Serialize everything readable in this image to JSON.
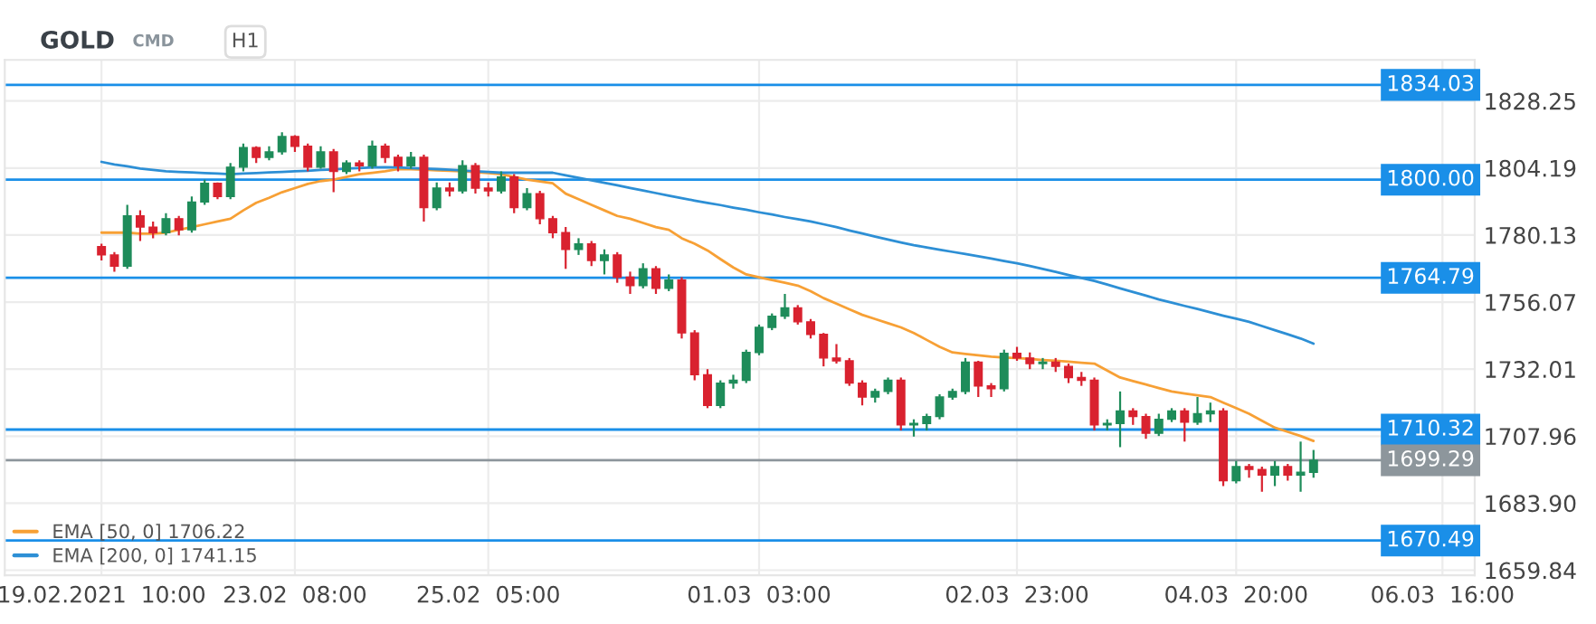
{
  "chart_data": {
    "type": "candlestick",
    "title": "GOLD",
    "subtitle": "CMD",
    "annotations": [
      "H1"
    ],
    "categories": [
      "19.02.2021  10:00",
      null,
      null,
      null,
      null,
      null,
      null,
      null,
      null,
      null,
      null,
      null,
      null,
      null,
      null,
      "23.02  08:00",
      null,
      null,
      null,
      null,
      null,
      null,
      null,
      null,
      null,
      null,
      null,
      null,
      null,
      null,
      "25.02  05:00",
      null,
      null,
      null,
      null,
      null,
      null,
      null,
      null,
      null,
      null,
      null,
      null,
      null,
      null,
      null,
      null,
      null,
      null,
      null,
      null,
      "01.03  03:00",
      null,
      null,
      null,
      null,
      null,
      null,
      null,
      null,
      null,
      null,
      null,
      null,
      null,
      null,
      null,
      null,
      null,
      null,
      null,
      "02.03  23:00",
      null,
      null,
      null,
      null,
      null,
      null,
      null,
      null,
      null,
      null,
      null,
      null,
      null,
      null,
      null,
      null,
      "04.03  20:00",
      null,
      null,
      null,
      null,
      null,
      null,
      null,
      null,
      null,
      null,
      null,
      null,
      null,
      null,
      null,
      "06.03  16:00",
      null,
      null
    ],
    "ohlc": [
      [
        1776,
        1777,
        1771,
        1773
      ],
      [
        1773,
        1774,
        1767,
        1769
      ],
      [
        1769,
        1791,
        1768,
        1787
      ],
      [
        1787,
        1789,
        1778,
        1783
      ],
      [
        1783,
        1785,
        1779,
        1781
      ],
      [
        1781,
        1788,
        1780,
        1786
      ],
      [
        1786,
        1787,
        1780,
        1782
      ],
      [
        1782,
        1794,
        1781,
        1792
      ],
      [
        1792,
        1800,
        1791,
        1798.7
      ],
      [
        1798.7,
        1799,
        1793,
        1794
      ],
      [
        1794,
        1806,
        1793,
        1804.5
      ],
      [
        1804.5,
        1813,
        1803,
        1811.5
      ],
      [
        1811.5,
        1812,
        1806,
        1808
      ],
      [
        1808,
        1812,
        1807,
        1810
      ],
      [
        1810,
        1817,
        1809,
        1815.5
      ],
      [
        1815.5,
        1816,
        1810,
        1812
      ],
      [
        1812,
        1813,
        1803,
        1804.5
      ],
      [
        1804.5,
        1812,
        1804,
        1810
      ],
      [
        1810,
        1811,
        1795.5,
        1803
      ],
      [
        1803,
        1807,
        1802,
        1806
      ],
      [
        1806,
        1807,
        1803,
        1805
      ],
      [
        1805,
        1814,
        1804,
        1812
      ],
      [
        1812,
        1813,
        1806,
        1808
      ],
      [
        1808,
        1809,
        1803,
        1805
      ],
      [
        1805,
        1810,
        1804,
        1808
      ],
      [
        1808,
        1809,
        1785,
        1790
      ],
      [
        1790,
        1799,
        1789,
        1797
      ],
      [
        1797,
        1799,
        1794,
        1796
      ],
      [
        1796,
        1807,
        1795,
        1805
      ],
      [
        1805,
        1806,
        1795,
        1797
      ],
      [
        1797,
        1799,
        1794,
        1796
      ],
      [
        1796,
        1803,
        1795,
        1801
      ],
      [
        1801,
        1802,
        1788,
        1790
      ],
      [
        1790,
        1797,
        1789,
        1795
      ],
      [
        1795,
        1796,
        1784,
        1786
      ],
      [
        1786,
        1787,
        1779,
        1781
      ],
      [
        1781,
        1783,
        1768,
        1775
      ],
      [
        1775,
        1779,
        1773,
        1777
      ],
      [
        1777,
        1778,
        1769,
        1771
      ],
      [
        1771,
        1775,
        1766,
        1773
      ],
      [
        1773,
        1774,
        1763,
        1765
      ],
      [
        1765,
        1767,
        1759,
        1762
      ],
      [
        1762,
        1770,
        1761,
        1768
      ],
      [
        1768,
        1769,
        1759,
        1761
      ],
      [
        1761,
        1766,
        1760,
        1764
      ],
      [
        1764,
        1765,
        1743,
        1745
      ],
      [
        1745,
        1746,
        1728,
        1730
      ],
      [
        1730,
        1732,
        1718,
        1719
      ],
      [
        1719,
        1728,
        1718,
        1727
      ],
      [
        1727,
        1730,
        1725,
        1728
      ],
      [
        1728,
        1739,
        1727,
        1738
      ],
      [
        1738,
        1748,
        1737,
        1747
      ],
      [
        1747,
        1752,
        1746,
        1751
      ],
      [
        1751,
        1759,
        1750,
        1754
      ],
      [
        1754,
        1755,
        1748,
        1749
      ],
      [
        1749,
        1750,
        1743,
        1744.5
      ],
      [
        1744.5,
        1745,
        1733,
        1736
      ],
      [
        1736,
        1741,
        1734,
        1735
      ],
      [
        1735,
        1736,
        1726,
        1727
      ],
      [
        1727,
        1728,
        1719,
        1722
      ],
      [
        1722,
        1725,
        1720,
        1724
      ],
      [
        1724,
        1729,
        1723,
        1728
      ],
      [
        1728,
        1729,
        1710,
        1712
      ],
      [
        1712,
        1714,
        1707.8,
        1712.5
      ],
      [
        1712.5,
        1716,
        1710,
        1715
      ],
      [
        1715,
        1723,
        1714,
        1722
      ],
      [
        1722,
        1725,
        1721,
        1724
      ],
      [
        1724,
        1736,
        1723,
        1734.5
      ],
      [
        1734.5,
        1735,
        1722,
        1726
      ],
      [
        1726,
        1727,
        1722,
        1725
      ],
      [
        1725,
        1739,
        1724,
        1737.7
      ],
      [
        1737.7,
        1740,
        1735,
        1736
      ],
      [
        1736,
        1738,
        1732,
        1734
      ],
      [
        1734,
        1736,
        1732,
        1734.5
      ],
      [
        1734.5,
        1736,
        1731,
        1733
      ],
      [
        1733,
        1734,
        1727,
        1729
      ],
      [
        1729,
        1731,
        1726,
        1728
      ],
      [
        1728,
        1729,
        1710,
        1712
      ],
      [
        1712,
        1714,
        1710,
        1712.5
      ],
      [
        1712.5,
        1724,
        1704,
        1717
      ],
      [
        1717,
        1718,
        1712,
        1715
      ],
      [
        1715,
        1716,
        1707,
        1709
      ],
      [
        1709,
        1716,
        1708,
        1714
      ],
      [
        1714,
        1718,
        1713,
        1717
      ],
      [
        1717,
        1718,
        1706,
        1713
      ],
      [
        1713,
        1722,
        1712,
        1716
      ],
      [
        1716,
        1720,
        1713,
        1717
      ],
      [
        1717,
        1718,
        1690,
        1692
      ],
      [
        1692,
        1699,
        1691,
        1697
      ],
      [
        1697,
        1698,
        1693,
        1696
      ],
      [
        1696,
        1697,
        1688,
        1694
      ],
      [
        1694,
        1699,
        1690,
        1697
      ],
      [
        1697,
        1698,
        1692,
        1694
      ],
      [
        1694,
        1706,
        1688,
        1695
      ],
      [
        1695,
        1703,
        1693,
        1699.29
      ],
      null,
      null,
      null,
      null,
      null,
      null,
      null,
      null,
      null,
      null,
      null,
      null
    ],
    "colors": [
      "#d9222f",
      "#d9222f",
      "#1e8c5a",
      "#d9222f",
      "#d9222f",
      "#1e8c5a",
      "#d9222f",
      "#1e8c5a",
      "#1e8c5a",
      "#d9222f",
      "#1e8c5a",
      "#1e8c5a",
      "#d9222f",
      "#1e8c5a",
      "#1e8c5a",
      "#d9222f",
      "#d9222f",
      "#1e8c5a",
      "#d9222f",
      "#1e8c5a",
      "#d9222f",
      "#1e8c5a",
      "#d9222f",
      "#d9222f",
      "#1e8c5a",
      "#d9222f",
      "#1e8c5a",
      "#d9222f",
      "#1e8c5a",
      "#d9222f",
      "#d9222f",
      "#1e8c5a",
      "#d9222f",
      "#1e8c5a",
      "#d9222f",
      "#d9222f",
      "#d9222f",
      "#1e8c5a",
      "#d9222f",
      "#1e8c5a",
      "#d9222f",
      "#d9222f",
      "#1e8c5a",
      "#d9222f",
      "#1e8c5a",
      "#d9222f",
      "#d9222f",
      "#d9222f",
      "#1e8c5a",
      "#1e8c5a",
      "#1e8c5a",
      "#1e8c5a",
      "#1e8c5a",
      "#1e8c5a",
      "#d9222f",
      "#d9222f",
      "#d9222f",
      "#d9222f",
      "#d9222f",
      "#d9222f",
      "#1e8c5a",
      "#1e8c5a",
      "#d9222f",
      "#1e8c5a",
      "#1e8c5a",
      "#1e8c5a",
      "#1e8c5a",
      "#1e8c5a",
      "#d9222f",
      "#d9222f",
      "#1e8c5a",
      "#d9222f",
      "#d9222f",
      "#1e8c5a",
      "#d9222f",
      "#d9222f",
      "#d9222f",
      "#d9222f",
      "#1e8c5a",
      "#1e8c5a",
      "#d9222f",
      "#d9222f",
      "#1e8c5a",
      "#1e8c5a",
      "#d9222f",
      "#1e8c5a",
      "#1e8c5a",
      "#d9222f",
      "#1e8c5a",
      "#d9222f",
      "#d9222f",
      "#1e8c5a",
      "#d9222f",
      "#1e8c5a",
      "#1e8c5a",
      null,
      null,
      null,
      null,
      null,
      null,
      null,
      null,
      null,
      null,
      null,
      null
    ],
    "series": [
      {
        "type": "line",
        "name": "EMA [50, 0] 1706.22",
        "color": "#f7a035",
        "values": [
          1781,
          1781,
          1781,
          1780.6,
          1780.6,
          1781,
          1782,
          1783,
          1784,
          1785,
          1786,
          1789,
          1791.7,
          1793.5,
          1795.5,
          1797,
          1798.5,
          1799.5,
          1800,
          1801,
          1802,
          1802.5,
          1803,
          1803.8,
          1803.8,
          1803.6,
          1803.4,
          1803.2,
          1803,
          1802.7,
          1802.4,
          1802,
          1801,
          1800,
          1799.4,
          1798.7,
          1795,
          1793,
          1791,
          1789,
          1787,
          1786,
          1784.5,
          1783,
          1782,
          1779,
          1777,
          1774.6,
          1771.5,
          1768.5,
          1766,
          1765,
          1764,
          1763,
          1762,
          1760,
          1757.5,
          1755.5,
          1753.5,
          1751.5,
          1750,
          1748.5,
          1747,
          1745,
          1742.5,
          1740,
          1738,
          1737.5,
          1737,
          1736.5,
          1736.2,
          1736,
          1735.7,
          1735.3,
          1735,
          1734.7,
          1734.3,
          1734,
          1731.5,
          1729,
          1727.7,
          1726.5,
          1725.2,
          1724,
          1723.3,
          1722.6,
          1722,
          1720,
          1718,
          1716,
          1713.5,
          1711,
          1709.5,
          1708,
          1706.22,
          null,
          null,
          null,
          null,
          null,
          null,
          null,
          null,
          null,
          null,
          null,
          null
        ]
      },
      {
        "type": "line",
        "name": "EMA [200, 0] 1741.15",
        "color": "#2d8fd5",
        "values": [
          1806.4,
          1805.5,
          1804.8,
          1804,
          1803.5,
          1803,
          1802.8,
          1802.6,
          1802.4,
          1802.2,
          1802,
          1802.2,
          1802.4,
          1802.6,
          1802.8,
          1803,
          1803.2,
          1803.5,
          1803.7,
          1804,
          1804.2,
          1804.4,
          1804.5,
          1804.4,
          1804.2,
          1804,
          1803.8,
          1803.6,
          1803.3,
          1803,
          1802.8,
          1802.5,
          1802.5,
          1802.5,
          1802.5,
          1802.5,
          1801.6,
          1800.7,
          1799.8,
          1798.9,
          1798,
          1797,
          1796.1,
          1795.2,
          1794.3,
          1793.4,
          1792.5,
          1791.7,
          1790.9,
          1790,
          1789.2,
          1788.3,
          1787.5,
          1786.6,
          1785.8,
          1785,
          1784,
          1783,
          1781.8,
          1780.7,
          1779.6,
          1778.5,
          1777.5,
          1776.5,
          1775.7,
          1774.9,
          1774.1,
          1773.3,
          1772.5,
          1771.7,
          1770.8,
          1770,
          1769,
          1768,
          1766.9,
          1765.8,
          1764.7,
          1763.7,
          1762.4,
          1761,
          1759.7,
          1758.4,
          1757,
          1755.9,
          1754.7,
          1753.6,
          1752.4,
          1751.2,
          1750.1,
          1749,
          1747.5,
          1746,
          1744.5,
          1743,
          1741.15,
          null,
          null,
          null,
          null,
          null,
          null,
          null,
          null,
          null,
          null,
          null,
          null
        ]
      }
    ],
    "ref_lines": [
      {
        "axis": "y",
        "value": 1834.03,
        "label": "1834.03",
        "color": "#1a8fe8"
      },
      {
        "axis": "y",
        "value": 1800.0,
        "label": "1800.00",
        "color": "#1a8fe8"
      },
      {
        "axis": "y",
        "value": 1764.79,
        "label": "1764.79",
        "color": "#1a8fe8"
      },
      {
        "axis": "y",
        "value": 1710.32,
        "label": "1710.32",
        "color": "#1a8fe8"
      },
      {
        "axis": "y",
        "value": 1699.29,
        "label": "1699.29",
        "color": "#8d969c"
      },
      {
        "axis": "y",
        "value": 1670.49,
        "label": "1670.49",
        "color": "#1a8fe8"
      }
    ],
    "ylim": [
      1658,
      1843
    ],
    "yticks": [
      1828.25,
      1804.19,
      1780.13,
      1756.07,
      1732.01,
      1707.96,
      {
        "value": 1683.9,
        "label": "1683.90"
      },
      1659.84
    ],
    "grid": true,
    "legend": "bottom left",
    "marker": "none",
    "line_style": "solid"
  }
}
